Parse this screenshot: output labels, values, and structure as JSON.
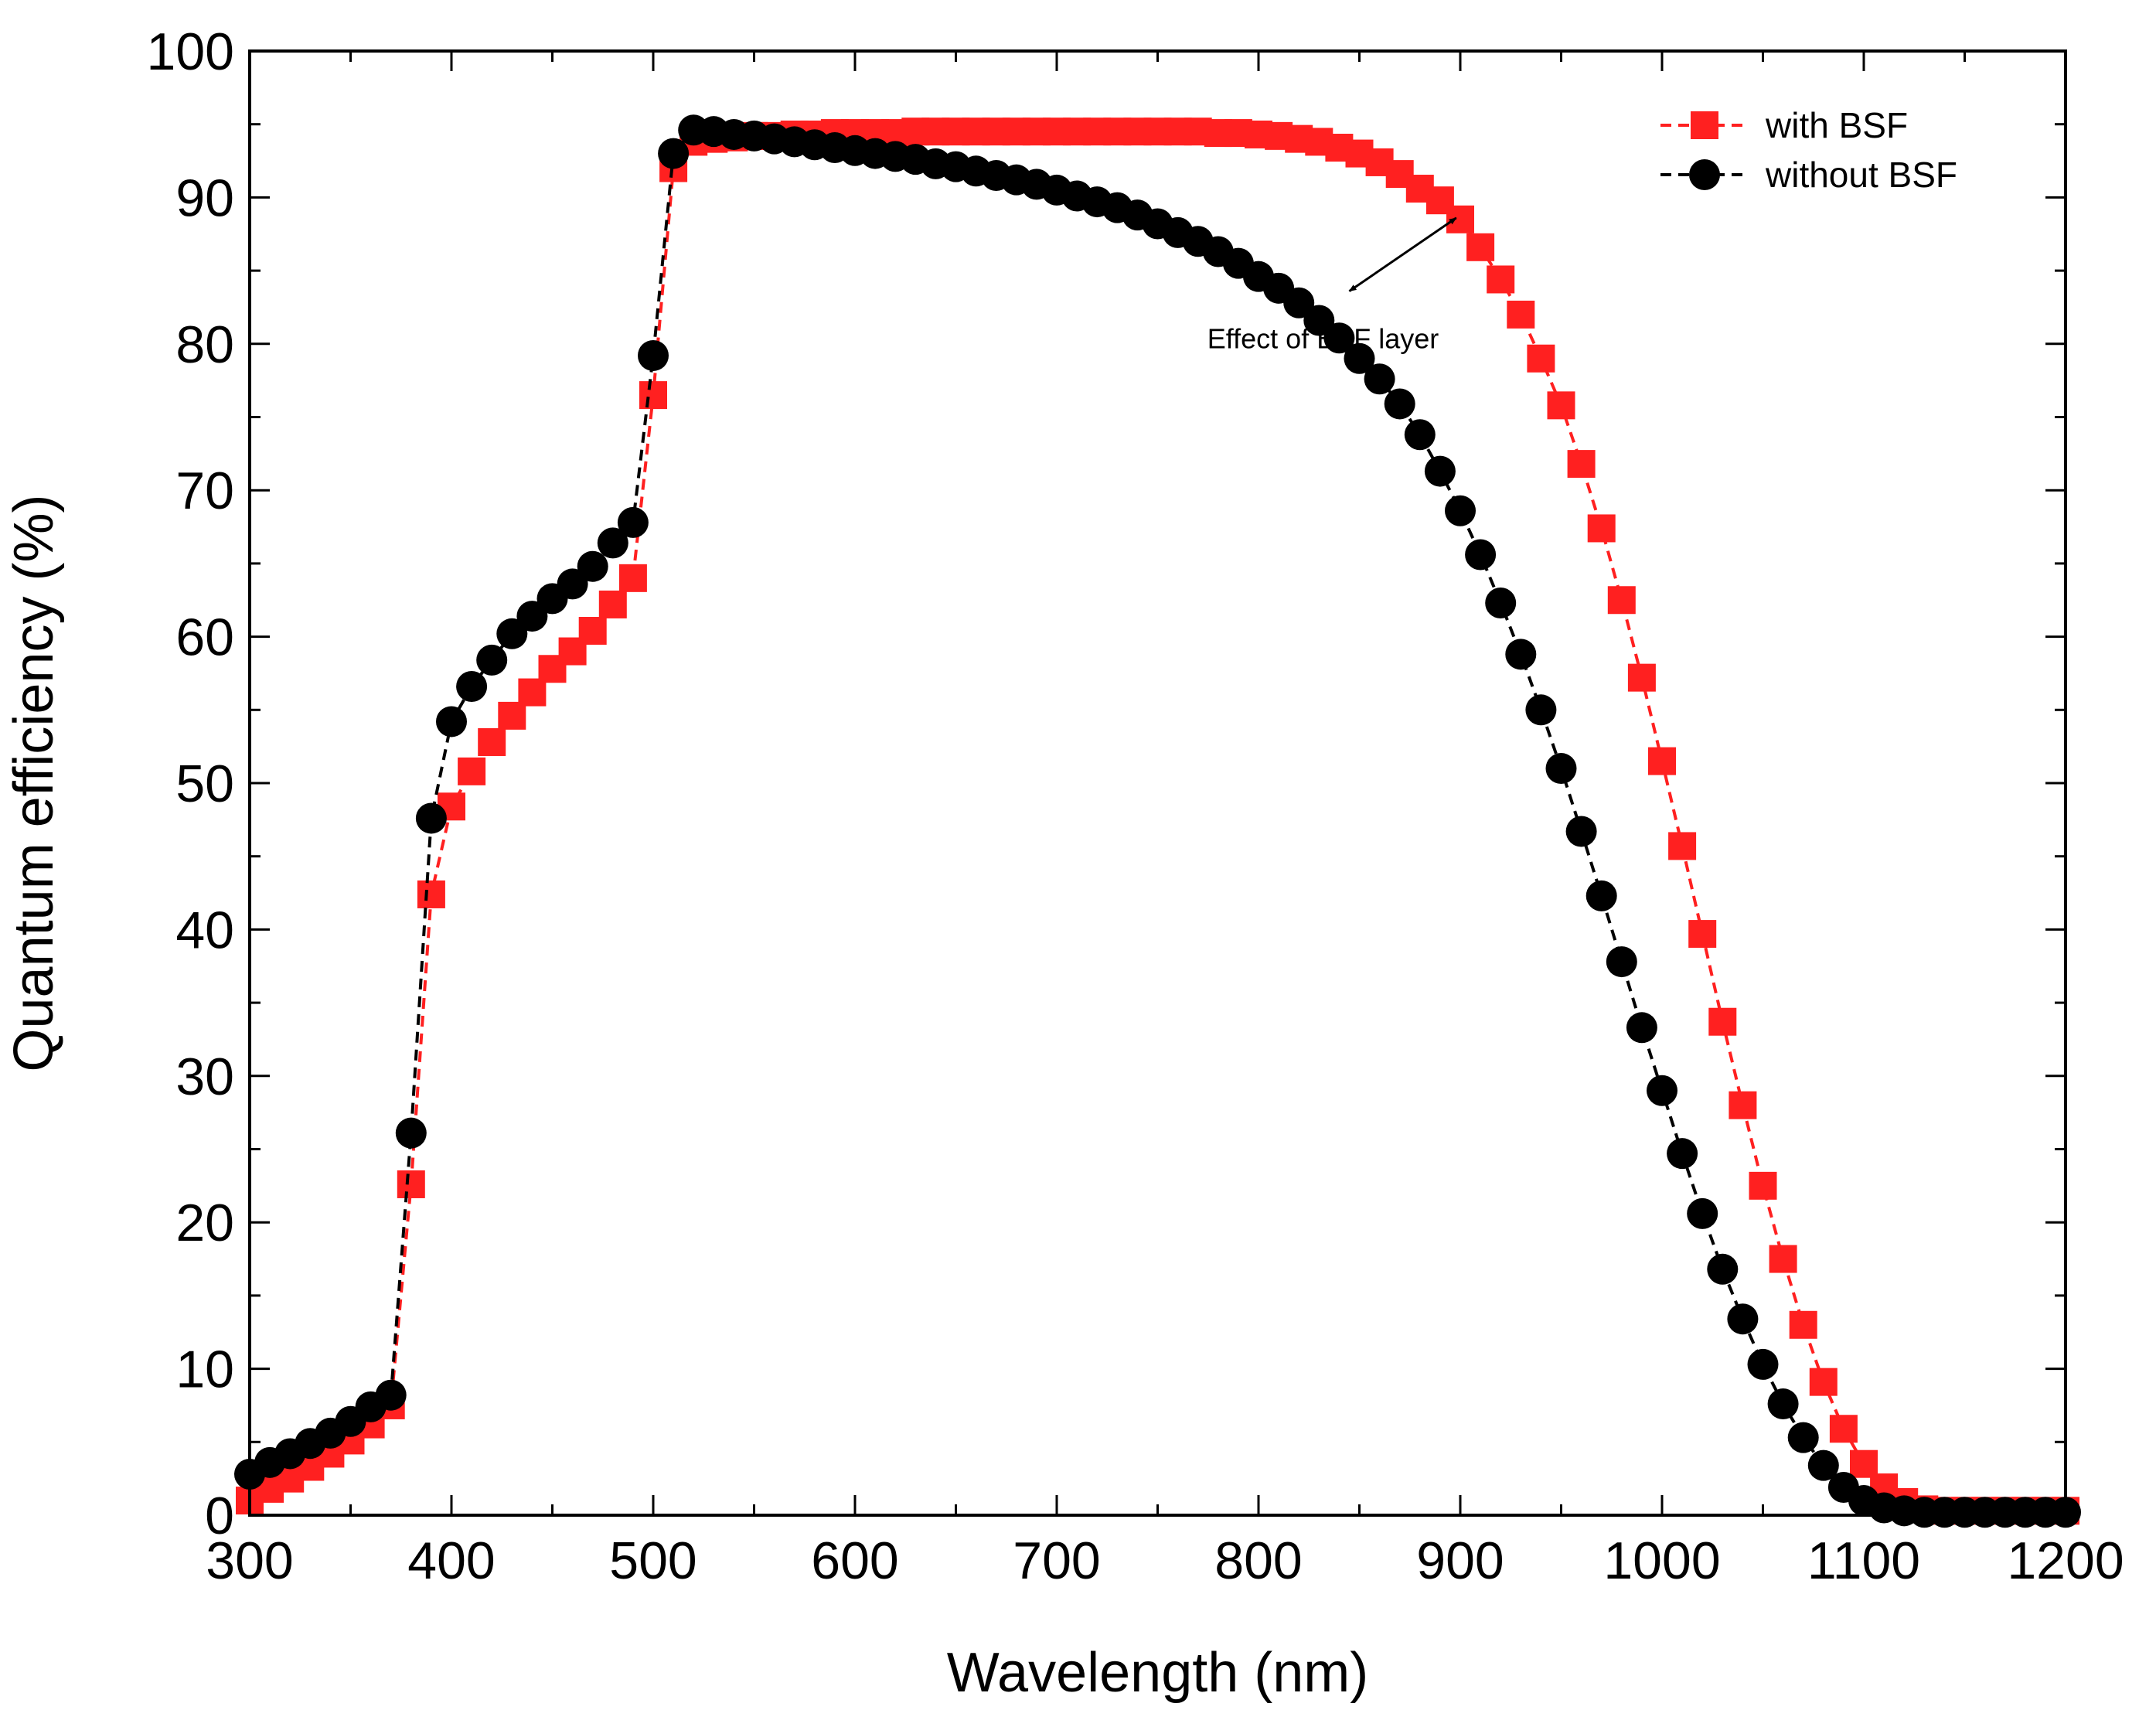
{
  "chart_data": {
    "type": "line",
    "title": "",
    "xlabel": "Wavelength (nm)",
    "ylabel": "Quantum efficiency (%)",
    "xlim": [
      300,
      1200
    ],
    "ylim": [
      0,
      100
    ],
    "xticks": [
      300,
      400,
      500,
      600,
      700,
      800,
      900,
      1000,
      1100,
      1200
    ],
    "yticks": [
      0,
      10,
      20,
      30,
      40,
      50,
      60,
      70,
      80,
      90,
      100
    ],
    "grid": false,
    "legend_position": "top-right",
    "x": [
      300,
      310,
      320,
      330,
      340,
      350,
      360,
      370,
      380,
      390,
      400,
      410,
      420,
      430,
      440,
      450,
      460,
      470,
      480,
      490,
      500,
      510,
      520,
      530,
      540,
      550,
      560,
      570,
      580,
      590,
      600,
      610,
      620,
      630,
      640,
      650,
      660,
      670,
      680,
      690,
      700,
      710,
      720,
      730,
      740,
      750,
      760,
      770,
      780,
      790,
      800,
      810,
      820,
      830,
      840,
      850,
      860,
      870,
      880,
      890,
      900,
      910,
      920,
      930,
      940,
      950,
      960,
      970,
      980,
      990,
      1000,
      1010,
      1020,
      1030,
      1040,
      1050,
      1060,
      1070,
      1080,
      1090,
      1100,
      1110,
      1120,
      1130,
      1140,
      1150,
      1160,
      1170,
      1180,
      1190,
      1200
    ],
    "series": [
      {
        "name": "with BSF",
        "color": "#ff2020",
        "marker": "square",
        "line_style": "dashed",
        "values": [
          1.0,
          1.8,
          2.5,
          3.3,
          4.2,
          5.1,
          6.2,
          7.5,
          22.6,
          42.4,
          48.4,
          50.8,
          52.8,
          54.6,
          56.2,
          57.8,
          59.0,
          60.4,
          62.2,
          64.0,
          76.5,
          92.0,
          93.8,
          94.0,
          94.1,
          94.2,
          94.2,
          94.3,
          94.3,
          94.4,
          94.4,
          94.4,
          94.4,
          94.5,
          94.5,
          94.5,
          94.5,
          94.5,
          94.5,
          94.5,
          94.5,
          94.5,
          94.5,
          94.5,
          94.5,
          94.5,
          94.5,
          94.5,
          94.4,
          94.4,
          94.3,
          94.2,
          94.0,
          93.8,
          93.4,
          93.0,
          92.4,
          91.6,
          90.6,
          89.8,
          88.5,
          86.6,
          84.4,
          82.0,
          79.0,
          75.8,
          71.8,
          67.4,
          62.5,
          57.2,
          51.5,
          45.7,
          39.7,
          33.7,
          28.0,
          22.5,
          17.5,
          13.0,
          9.1,
          5.9,
          3.5,
          1.9,
          0.9,
          0.4,
          0.3,
          0.3,
          0.3,
          0.3,
          0.3,
          0.3,
          0.3
        ]
      },
      {
        "name": "without BSF",
        "color": "#000000",
        "marker": "circle",
        "line_style": "dashed",
        "values": [
          2.8,
          3.6,
          4.2,
          4.9,
          5.6,
          6.4,
          7.4,
          8.2,
          26.1,
          47.6,
          54.2,
          56.6,
          58.4,
          60.2,
          61.4,
          62.6,
          63.6,
          64.8,
          66.4,
          67.8,
          79.2,
          93.0,
          94.6,
          94.5,
          94.3,
          94.2,
          94.0,
          93.8,
          93.6,
          93.4,
          93.2,
          93.0,
          92.8,
          92.6,
          92.3,
          92.1,
          91.8,
          91.5,
          91.2,
          90.9,
          90.5,
          90.1,
          89.7,
          89.3,
          88.8,
          88.2,
          87.6,
          87.0,
          86.3,
          85.5,
          84.6,
          83.8,
          82.8,
          81.6,
          80.4,
          79.0,
          77.6,
          75.9,
          73.8,
          71.3,
          68.6,
          65.6,
          62.3,
          58.8,
          55.0,
          51.0,
          46.7,
          42.3,
          37.8,
          33.3,
          29.0,
          24.7,
          20.6,
          16.8,
          13.4,
          10.3,
          7.6,
          5.3,
          3.4,
          1.9,
          1.0,
          0.5,
          0.3,
          0.2,
          0.2,
          0.2,
          0.2,
          0.2,
          0.2,
          0.2,
          0.2
        ]
      }
    ],
    "annotations": [
      {
        "text": "Effect of BSF layer",
        "x": 832,
        "y": 79.7,
        "arrow_from": [
          845,
          83.6
        ],
        "arrow_to": [
          898,
          88.6
        ]
      }
    ]
  }
}
